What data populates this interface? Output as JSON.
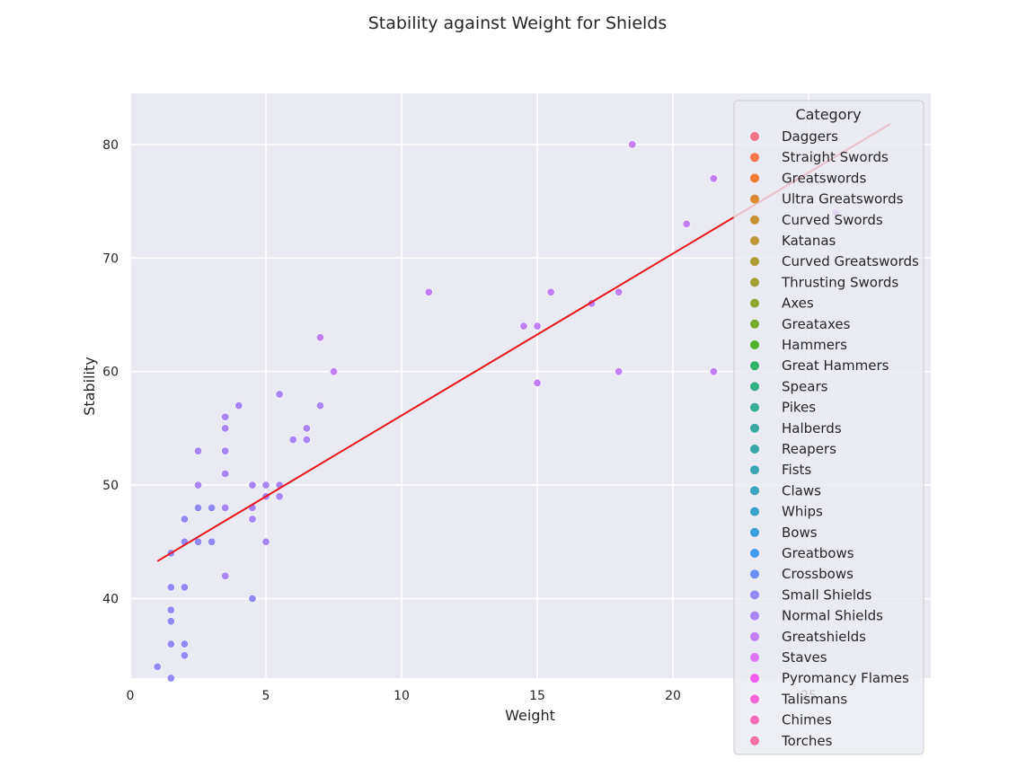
{
  "chart_data": {
    "type": "scatter",
    "title": "Stability against Weight for Shields",
    "xlabel": "Weight",
    "ylabel": "Stability",
    "xlim": [
      0,
      29.5
    ],
    "ylim": [
      33,
      84.5
    ],
    "xticks": [
      0,
      5,
      10,
      15,
      20,
      25
    ],
    "yticks": [
      40,
      50,
      60,
      70,
      80
    ],
    "grid": true,
    "legend": {
      "title": "Category",
      "placement": "upper-right",
      "entries": [
        {
          "label": "Daggers",
          "color": "#f77189"
        },
        {
          "label": "Straight Swords",
          "color": "#f7754f"
        },
        {
          "label": "Greatswords",
          "color": "#f37932"
        },
        {
          "label": "Ultra Greatswords",
          "color": "#dc8932"
        },
        {
          "label": "Curved Swords",
          "color": "#ca9131"
        },
        {
          "label": "Katanas",
          "color": "#bb9832"
        },
        {
          "label": "Curved Greatswords",
          "color": "#ae9d31"
        },
        {
          "label": "Thrusting Swords",
          "color": "#a0a131"
        },
        {
          "label": "Axes",
          "color": "#8ea531"
        },
        {
          "label": "Greataxes",
          "color": "#77ab31"
        },
        {
          "label": "Hammers",
          "color": "#50b131"
        },
        {
          "label": "Great Hammers",
          "color": "#33b36a"
        },
        {
          "label": "Spears",
          "color": "#35af84"
        },
        {
          "label": "Pikes",
          "color": "#36ad95"
        },
        {
          "label": "Halberds",
          "color": "#37aaa1"
        },
        {
          "label": "Reapers",
          "color": "#37a8aa"
        },
        {
          "label": "Fists",
          "color": "#38a6b3"
        },
        {
          "label": "Claws",
          "color": "#39a4bc"
        },
        {
          "label": "Whips",
          "color": "#3ba1c8"
        },
        {
          "label": "Bows",
          "color": "#3d9dd9"
        },
        {
          "label": "Greatbows",
          "color": "#4598f0"
        },
        {
          "label": "Crossbows",
          "color": "#6e8ff4"
        },
        {
          "label": "Small Shields",
          "color": "#9189f4"
        },
        {
          "label": "Normal Shields",
          "color": "#a884f4"
        },
        {
          "label": "Greatshields",
          "color": "#c17ff4"
        },
        {
          "label": "Staves",
          "color": "#dd75f4"
        },
        {
          "label": "Pyromancy Flames",
          "color": "#f45eed"
        },
        {
          "label": "Talismans",
          "color": "#f565d0"
        },
        {
          "label": "Chimes",
          "color": "#f56bb9"
        },
        {
          "label": "Torches",
          "color": "#f66ea3"
        }
      ]
    },
    "series": [
      {
        "name": "Small Shields",
        "color": "#9189f4",
        "points": [
          [
            1,
            34
          ],
          [
            1.5,
            33
          ],
          [
            1.5,
            36
          ],
          [
            1.5,
            38
          ],
          [
            1.5,
            39
          ],
          [
            1.5,
            41
          ],
          [
            1.5,
            44
          ],
          [
            2,
            35
          ],
          [
            2,
            36
          ],
          [
            2,
            41
          ],
          [
            2,
            45
          ],
          [
            2,
            47
          ],
          [
            2.5,
            45
          ],
          [
            2.5,
            48
          ],
          [
            3,
            45
          ],
          [
            3,
            48
          ],
          [
            4.5,
            40
          ]
        ]
      },
      {
        "name": "Normal Shields",
        "color": "#a884f4",
        "points": [
          [
            2.5,
            50
          ],
          [
            2.5,
            53
          ],
          [
            3.5,
            42
          ],
          [
            3.5,
            48
          ],
          [
            3.5,
            51
          ],
          [
            3.5,
            53
          ],
          [
            3.5,
            55
          ],
          [
            3.5,
            56
          ],
          [
            4,
            57
          ],
          [
            4.5,
            47
          ],
          [
            4.5,
            48
          ],
          [
            4.5,
            50
          ],
          [
            5,
            45
          ],
          [
            5,
            49
          ],
          [
            5,
            50
          ],
          [
            5.5,
            49
          ],
          [
            5.5,
            50
          ],
          [
            5.5,
            58
          ],
          [
            6,
            54
          ],
          [
            6.5,
            54
          ],
          [
            6.5,
            55
          ],
          [
            7,
            57
          ]
        ]
      },
      {
        "name": "Greatshields",
        "color": "#c17ff4",
        "points": [
          [
            7,
            63
          ],
          [
            7.5,
            60
          ],
          [
            11,
            67
          ],
          [
            14.5,
            64
          ],
          [
            15,
            59
          ],
          [
            15,
            64
          ],
          [
            15.5,
            67
          ],
          [
            17,
            66
          ],
          [
            18,
            60
          ],
          [
            18,
            67
          ],
          [
            18.5,
            80
          ],
          [
            20.5,
            73
          ],
          [
            21.5,
            60
          ],
          [
            21.5,
            77
          ],
          [
            26,
            74
          ]
        ]
      }
    ],
    "trendline": {
      "color": "#e8141a",
      "x": [
        1,
        28
      ],
      "y": [
        43.3,
        81.8
      ]
    }
  }
}
